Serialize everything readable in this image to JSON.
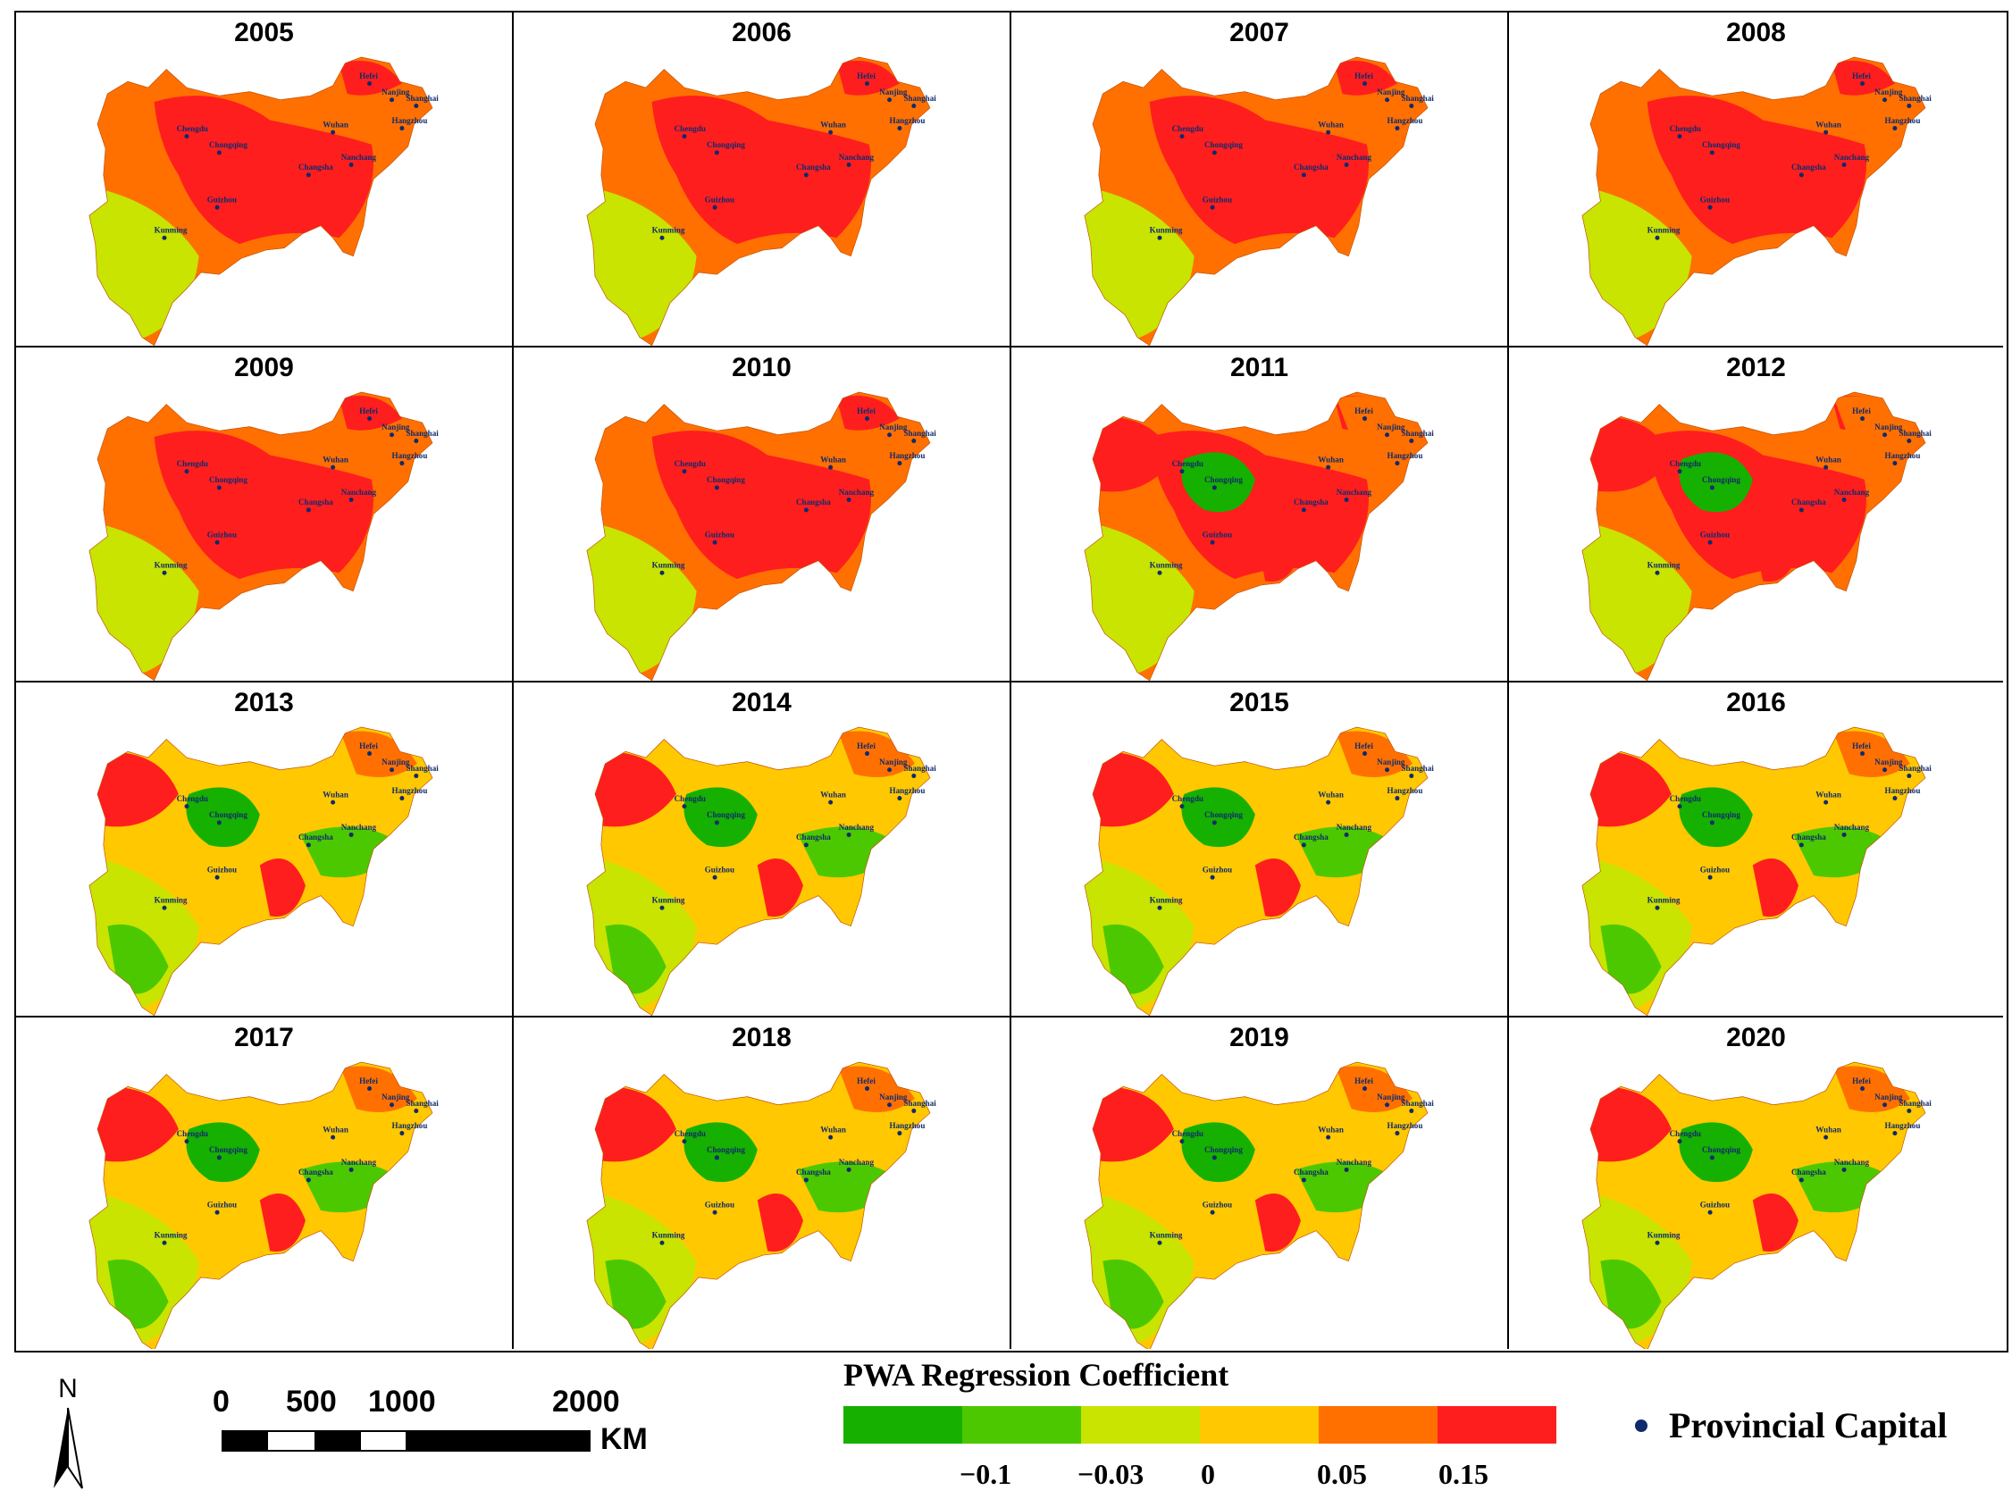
{
  "panels": [
    {
      "year": "2005",
      "pattern": "red"
    },
    {
      "year": "2006",
      "pattern": "red"
    },
    {
      "year": "2007",
      "pattern": "red"
    },
    {
      "year": "2008",
      "pattern": "red"
    },
    {
      "year": "2009",
      "pattern": "red"
    },
    {
      "year": "2010",
      "pattern": "red"
    },
    {
      "year": "2011",
      "pattern": "mixed"
    },
    {
      "year": "2012",
      "pattern": "mixed"
    },
    {
      "year": "2013",
      "pattern": "green"
    },
    {
      "year": "2014",
      "pattern": "green"
    },
    {
      "year": "2015",
      "pattern": "green"
    },
    {
      "year": "2016",
      "pattern": "green"
    },
    {
      "year": "2017",
      "pattern": "green"
    },
    {
      "year": "2018",
      "pattern": "green"
    },
    {
      "year": "2019",
      "pattern": "green"
    },
    {
      "year": "2020",
      "pattern": "green"
    }
  ],
  "cities": [
    "Chengdu",
    "Chongqing",
    "Kunming",
    "Guizhou",
    "Changsha",
    "Wuhan",
    "Nanchang",
    "Hefei",
    "Nanjing",
    "Shanghai",
    "Hangzhou"
  ],
  "north_arrow": {
    "label": "N"
  },
  "scale_bar": {
    "ticks": [
      "0",
      "500",
      "1000",
      "2000"
    ],
    "unit": "KM"
  },
  "legend": {
    "title": "PWA Regression Coefficient",
    "colors": [
      "#16b000",
      "#4cc800",
      "#c8e400",
      "#ffc800",
      "#ff7000",
      "#ff1e1e"
    ],
    "ticks": [
      "−0.1",
      "−0.03",
      "0",
      "0.05",
      "0.15"
    ]
  },
  "capital_legend": {
    "label": "Provincial Capital",
    "color": "#102a6e"
  }
}
